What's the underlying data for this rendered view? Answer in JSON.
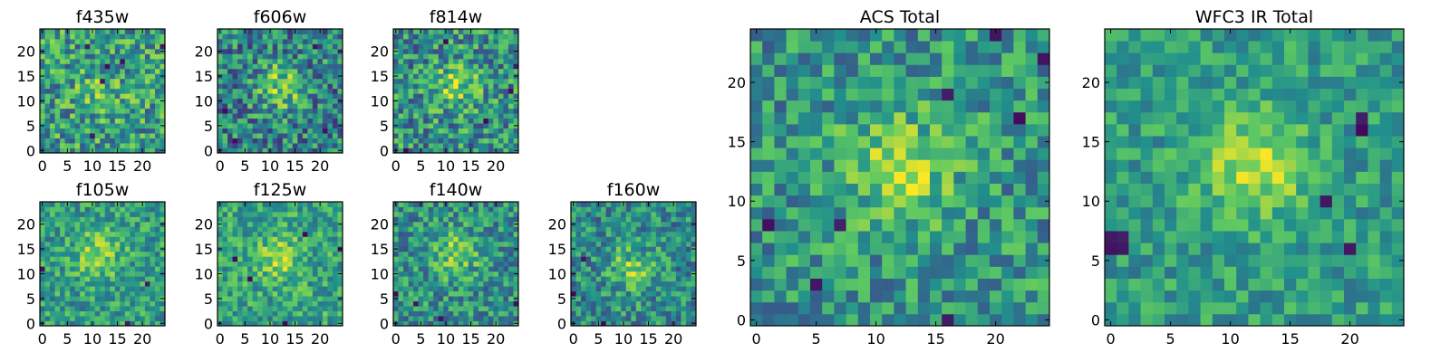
{
  "figure": {
    "colormap": "viridis",
    "colormap_stops": [
      "#440154",
      "#3b528b",
      "#21918c",
      "#5ec962",
      "#fde725"
    ]
  },
  "chart_data": [
    {
      "type": "heatmap",
      "title": "f435w",
      "grid_size": 25,
      "xlim": [
        -0.5,
        24.5
      ],
      "ylim": [
        -0.5,
        24.5
      ],
      "xticks": [
        0,
        5,
        10,
        15,
        20
      ],
      "yticks": [
        0,
        5,
        10,
        15,
        20
      ],
      "pattern": "noisy, faint central source near (12, 12)",
      "blob": [
        12,
        12
      ],
      "blob_strength": 0.15,
      "background": 0.55,
      "noise": 0.3,
      "dark_pixels": [
        [
          9,
          21
        ],
        [
          16,
          18
        ],
        [
          13,
          17
        ],
        [
          10,
          3
        ],
        [
          12,
          14
        ],
        [
          24,
          21
        ]
      ],
      "seed": 11
    },
    {
      "type": "heatmap",
      "title": "f606w",
      "grid_size": 25,
      "xlim": [
        -0.5,
        24.5
      ],
      "ylim": [
        -0.5,
        24.5
      ],
      "xticks": [
        0,
        5,
        10,
        15,
        20
      ],
      "yticks": [
        0,
        5,
        10,
        15,
        20
      ],
      "pattern": "elongated bright source near (12, 13)",
      "blob": [
        12,
        13
      ],
      "blob_strength": 0.35,
      "background": 0.45,
      "noise": 0.3,
      "dark_pixels": [
        [
          3,
          2
        ],
        [
          1,
          8
        ],
        [
          19,
          21
        ],
        [
          21,
          4
        ]
      ],
      "seed": 23
    },
    {
      "type": "heatmap",
      "title": "f814w",
      "grid_size": 25,
      "xlim": [
        -0.5,
        24.5
      ],
      "ylim": [
        -0.5,
        24.5
      ],
      "xticks": [
        0,
        5,
        10,
        15,
        20
      ],
      "yticks": [
        0,
        5,
        10,
        15,
        20
      ],
      "pattern": "bright source near (12, 13)",
      "blob": [
        12,
        13
      ],
      "blob_strength": 0.3,
      "background": 0.5,
      "noise": 0.3,
      "dark_pixels": [
        [
          2,
          0
        ],
        [
          10,
          22
        ],
        [
          23,
          12
        ],
        [
          18,
          6
        ],
        [
          24,
          17
        ]
      ],
      "seed": 37
    },
    {
      "type": "heatmap",
      "title": "f105w",
      "grid_size": 25,
      "xlim": [
        -0.5,
        24.5
      ],
      "ylim": [
        -0.5,
        24.5
      ],
      "xticks": [
        0,
        5,
        10,
        15,
        20
      ],
      "yticks": [
        0,
        5,
        10,
        15,
        20
      ],
      "pattern": "smooth, bright source near (11, 14)",
      "blob": [
        11,
        14
      ],
      "blob_strength": 0.3,
      "background": 0.55,
      "noise": 0.22,
      "dark_pixels": [
        [
          0,
          11
        ],
        [
          21,
          8
        ],
        [
          17,
          0
        ]
      ],
      "seed": 41
    },
    {
      "type": "heatmap",
      "title": "f125w",
      "grid_size": 25,
      "xlim": [
        -0.5,
        24.5
      ],
      "ylim": [
        -0.5,
        24.5
      ],
      "xticks": [
        0,
        5,
        10,
        15,
        20
      ],
      "yticks": [
        0,
        5,
        10,
        15,
        20
      ],
      "pattern": "smooth, bright source near (12, 13)",
      "blob": [
        12,
        13
      ],
      "blob_strength": 0.25,
      "background": 0.58,
      "noise": 0.22,
      "dark_pixels": [
        [
          3,
          13
        ],
        [
          17,
          18
        ],
        [
          24,
          15
        ],
        [
          13,
          0
        ],
        [
          6,
          9
        ]
      ],
      "seed": 53
    },
    {
      "type": "heatmap",
      "title": "f140w",
      "grid_size": 25,
      "xlim": [
        -0.5,
        24.5
      ],
      "ylim": [
        -0.5,
        24.5
      ],
      "xticks": [
        0,
        5,
        10,
        15,
        20
      ],
      "yticks": [
        0,
        5,
        10,
        15,
        20
      ],
      "pattern": "bright source near (12, 14)",
      "blob": [
        12,
        14
      ],
      "blob_strength": 0.3,
      "background": 0.5,
      "noise": 0.25,
      "dark_pixels": [
        [
          0,
          6
        ],
        [
          4,
          4
        ],
        [
          9,
          1
        ],
        [
          24,
          4
        ]
      ],
      "seed": 67
    },
    {
      "type": "heatmap",
      "title": "f160w",
      "grid_size": 25,
      "xlim": [
        -0.5,
        24.5
      ],
      "ylim": [
        -0.5,
        24.5
      ],
      "xticks": [
        0,
        5,
        10,
        15,
        20
      ],
      "yticks": [
        0,
        5,
        10,
        15,
        20
      ],
      "pattern": "elongated source near (12, 11), bright top edge",
      "blob": [
        12,
        11
      ],
      "blob_strength": 0.3,
      "background": 0.48,
      "noise": 0.25,
      "dark_pixels": [
        [
          0,
          6
        ],
        [
          6,
          0
        ],
        [
          2,
          13
        ]
      ],
      "seed": 79
    },
    {
      "type": "heatmap",
      "title": "ACS Total",
      "grid_size": 25,
      "xlim": [
        -0.5,
        24.5
      ],
      "ylim": [
        -0.5,
        24.5
      ],
      "xticks": [
        0,
        5,
        10,
        15,
        20
      ],
      "yticks": [
        0,
        5,
        10,
        15,
        20
      ],
      "pattern": "bright source near (12, 13)",
      "blob": [
        12,
        13
      ],
      "blob_strength": 0.32,
      "background": 0.52,
      "noise": 0.24,
      "dark_pixels": [
        [
          20,
          24
        ],
        [
          24,
          22
        ],
        [
          16,
          19
        ],
        [
          7,
          8
        ],
        [
          1,
          8
        ],
        [
          5,
          3
        ],
        [
          16,
          0
        ],
        [
          22,
          17
        ]
      ],
      "seed": 97
    },
    {
      "type": "heatmap",
      "title": "WFC3 IR Total",
      "grid_size": 25,
      "xlim": [
        -0.5,
        24.5
      ],
      "ylim": [
        -0.5,
        24.5
      ],
      "xticks": [
        0,
        5,
        10,
        15,
        20
      ],
      "yticks": [
        0,
        5,
        10,
        15,
        20
      ],
      "pattern": "bright source near (12, 13), bright region near top (8, 23)",
      "blob": [
        12,
        13
      ],
      "blob_strength": 0.32,
      "background": 0.55,
      "noise": 0.18,
      "dark_pixels": [
        [
          0,
          7
        ],
        [
          1,
          7
        ],
        [
          0,
          6
        ],
        [
          1,
          6
        ],
        [
          21,
          16
        ],
        [
          21,
          17
        ],
        [
          20,
          6
        ],
        [
          18,
          10
        ]
      ],
      "seed": 113
    }
  ]
}
